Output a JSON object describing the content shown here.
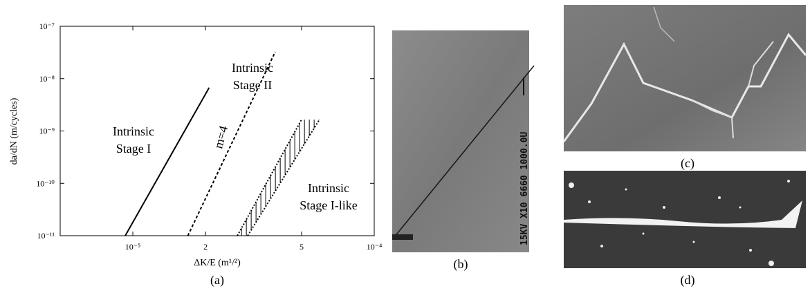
{
  "chart_data": {
    "type": "line",
    "xlabel": "ΔK/E (m¹/²)",
    "ylabel": "da/dN (m/cycles)",
    "panel_label": "(a)",
    "log_x": true,
    "log_y": true,
    "xlim": [
      5e-06,
      0.0001
    ],
    "ylim": [
      1e-11,
      1e-07
    ],
    "xticks": [
      {
        "value": 1e-05,
        "label": "10⁻⁵"
      },
      {
        "value": 2e-05,
        "label": "2"
      },
      {
        "value": 5e-05,
        "label": "5"
      },
      {
        "value": 0.0001,
        "label": "10⁻⁴"
      }
    ],
    "yticks": [
      {
        "value": 1e-11,
        "label": "10⁻¹¹"
      },
      {
        "value": 1e-10,
        "label": "10⁻¹⁰"
      },
      {
        "value": 1e-09,
        "label": "10⁻⁹"
      },
      {
        "value": 1e-08,
        "label": "10⁻⁸"
      },
      {
        "value": 1e-07,
        "label": "10⁻⁷"
      }
    ],
    "series": [
      {
        "color": "#000000",
        "style": "solid",
        "x": [
          9.3e-06,
          2.07e-05
        ],
        "values": [
          1e-11,
          6.7e-09
        ]
      },
      {
        "color": "#000000",
        "style": "dashed",
        "x": [
          1.69e-05,
          3.89e-05
        ],
        "values": [
          1e-11,
          3.25e-08
        ]
      },
      {
        "color": "#000000",
        "style": "dotted",
        "x": [
          2.71e-05,
          5e-05
        ],
        "values": [
          1e-11,
          1.65e-09
        ]
      },
      {
        "color": "#000000",
        "style": "dotted",
        "x": [
          2.99e-05,
          5.93e-05
        ],
        "values": [
          1e-11,
          1.65e-09
        ]
      }
    ],
    "hatch_between": [
      2,
      3
    ],
    "annotations": [
      {
        "lines": [
          "Intrinsic",
          "Stage I"
        ]
      },
      {
        "lines": [
          "Intrinsic",
          "Stage II"
        ]
      },
      {
        "lines": [
          "Intrinsic",
          "Stage I-like"
        ]
      },
      {
        "lines": [
          "m=4"
        ]
      }
    ]
  },
  "panels": [
    {
      "label": "(b)",
      "imprint": "15KV X10 6660 1000.0U"
    },
    {
      "label": "(c)"
    },
    {
      "label": "(d)"
    }
  ]
}
